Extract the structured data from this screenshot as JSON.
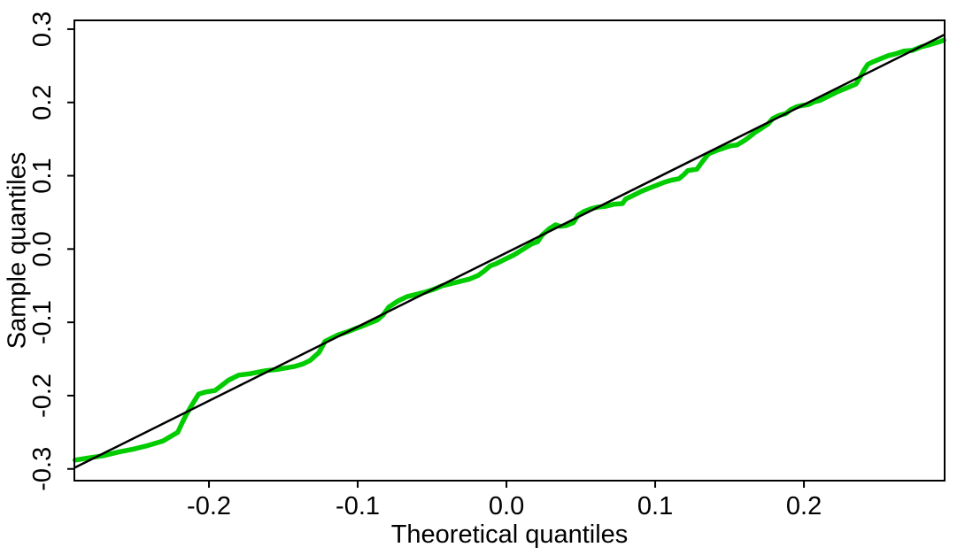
{
  "figure": {
    "background": "#FFFFFF"
  },
  "chart_data": {
    "type": "line",
    "title": "",
    "xlabel": "Theoretical quantiles",
    "ylabel": "Sample quantiles",
    "grid": false,
    "legend": "none",
    "xlim": [
      -0.2905,
      0.2946
    ],
    "ylim": [
      -0.316,
      0.312
    ],
    "x_ticks": {
      "values": [
        -0.2,
        -0.1,
        0.0,
        0.1,
        0.2
      ],
      "labels": [
        "-0.2",
        "-0.1",
        "0.0",
        "0.1",
        "0.2"
      ]
    },
    "y_ticks": {
      "values": [
        -0.3,
        -0.2,
        -0.1,
        0.0,
        0.1,
        0.2,
        0.3
      ],
      "labels": [
        "-0.3",
        "-0.2",
        "-0.1",
        "0.0",
        "0.1",
        "0.2",
        "0.3"
      ]
    },
    "series": [
      {
        "name": "sample-quantile-line",
        "color": "#00CC00",
        "width": 5.5,
        "points": [
          [
            -0.29,
            -0.288
          ],
          [
            -0.281,
            -0.285
          ],
          [
            -0.271,
            -0.282
          ],
          [
            -0.261,
            -0.277
          ],
          [
            -0.251,
            -0.273
          ],
          [
            -0.241,
            -0.268
          ],
          [
            -0.231,
            -0.262
          ],
          [
            -0.226,
            -0.256
          ],
          [
            -0.221,
            -0.25
          ],
          [
            -0.218,
            -0.237
          ],
          [
            -0.215,
            -0.225
          ],
          [
            -0.211,
            -0.211
          ],
          [
            -0.207,
            -0.198
          ],
          [
            -0.202,
            -0.195
          ],
          [
            -0.196,
            -0.193
          ],
          [
            -0.192,
            -0.187
          ],
          [
            -0.187,
            -0.179
          ],
          [
            -0.18,
            -0.172
          ],
          [
            -0.172,
            -0.17
          ],
          [
            -0.162,
            -0.166
          ],
          [
            -0.153,
            -0.164
          ],
          [
            -0.142,
            -0.16
          ],
          [
            -0.137,
            -0.157
          ],
          [
            -0.132,
            -0.152
          ],
          [
            -0.126,
            -0.141
          ],
          [
            -0.122,
            -0.126
          ],
          [
            -0.117,
            -0.121
          ],
          [
            -0.113,
            -0.117
          ],
          [
            -0.107,
            -0.113
          ],
          [
            -0.102,
            -0.109
          ],
          [
            -0.098,
            -0.106
          ],
          [
            -0.092,
            -0.101
          ],
          [
            -0.087,
            -0.097
          ],
          [
            -0.083,
            -0.09
          ],
          [
            -0.079,
            -0.079
          ],
          [
            -0.073,
            -0.071
          ],
          [
            -0.067,
            -0.065
          ],
          [
            -0.061,
            -0.062
          ],
          [
            -0.055,
            -0.059
          ],
          [
            -0.049,
            -0.055
          ],
          [
            -0.043,
            -0.05
          ],
          [
            -0.037,
            -0.047
          ],
          [
            -0.031,
            -0.044
          ],
          [
            -0.025,
            -0.041
          ],
          [
            -0.019,
            -0.036
          ],
          [
            -0.015,
            -0.03
          ],
          [
            -0.011,
            -0.023
          ],
          [
            -0.007,
            -0.02
          ],
          [
            -0.001,
            -0.014
          ],
          [
            0.005,
            -0.008
          ],
          [
            0.013,
            0.002
          ],
          [
            0.017,
            0.007
          ],
          [
            0.021,
            0.01
          ],
          [
            0.024,
            0.019
          ],
          [
            0.029,
            0.028
          ],
          [
            0.033,
            0.033
          ],
          [
            0.036,
            0.031
          ],
          [
            0.04,
            0.032
          ],
          [
            0.045,
            0.036
          ],
          [
            0.048,
            0.046
          ],
          [
            0.052,
            0.051
          ],
          [
            0.057,
            0.055
          ],
          [
            0.061,
            0.057
          ],
          [
            0.066,
            0.058
          ],
          [
            0.072,
            0.061
          ],
          [
            0.078,
            0.062
          ],
          [
            0.08,
            0.068
          ],
          [
            0.086,
            0.074
          ],
          [
            0.091,
            0.079
          ],
          [
            0.096,
            0.083
          ],
          [
            0.101,
            0.087
          ],
          [
            0.106,
            0.091
          ],
          [
            0.111,
            0.094
          ],
          [
            0.116,
            0.096
          ],
          [
            0.119,
            0.101
          ],
          [
            0.122,
            0.107
          ],
          [
            0.128,
            0.109
          ],
          [
            0.132,
            0.12
          ],
          [
            0.136,
            0.13
          ],
          [
            0.142,
            0.135
          ],
          [
            0.148,
            0.139
          ],
          [
            0.151,
            0.141
          ],
          [
            0.155,
            0.142
          ],
          [
            0.16,
            0.148
          ],
          [
            0.164,
            0.154
          ],
          [
            0.167,
            0.159
          ],
          [
            0.171,
            0.164
          ],
          [
            0.176,
            0.171
          ],
          [
            0.179,
            0.178
          ],
          [
            0.183,
            0.182
          ],
          [
            0.188,
            0.185
          ],
          [
            0.191,
            0.19
          ],
          [
            0.195,
            0.194
          ],
          [
            0.199,
            0.196
          ],
          [
            0.203,
            0.197
          ],
          [
            0.207,
            0.201
          ],
          [
            0.211,
            0.203
          ],
          [
            0.217,
            0.209
          ],
          [
            0.223,
            0.215
          ],
          [
            0.229,
            0.22
          ],
          [
            0.235,
            0.225
          ],
          [
            0.238,
            0.235
          ],
          [
            0.24,
            0.243
          ],
          [
            0.243,
            0.252
          ],
          [
            0.246,
            0.255
          ],
          [
            0.252,
            0.26
          ],
          [
            0.257,
            0.264
          ],
          [
            0.261,
            0.266
          ],
          [
            0.267,
            0.27
          ],
          [
            0.273,
            0.271
          ],
          [
            0.279,
            0.276
          ],
          [
            0.285,
            0.279
          ],
          [
            0.29,
            0.282
          ],
          [
            0.294,
            0.285
          ]
        ]
      },
      {
        "name": "identity-reference-line",
        "color": "#000000",
        "width": 2.5,
        "points": [
          [
            -0.29,
            -0.298
          ],
          [
            0.294,
            0.292
          ]
        ]
      }
    ]
  }
}
